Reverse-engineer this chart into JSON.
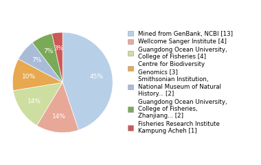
{
  "labels": [
    "Mined from GenBank, NCBI [13]",
    "Wellcome Sanger Institute [4]",
    "Guangdong Ocean University,\nCollege of Fisheries [4]",
    "Centre for Biodiversity\nGenomics [3]",
    "Smithsonian Institution,\nNational Museum of Natural\nHistory... [2]",
    "Guangdong Ocean University,\nCollege of Fisheries,\nZhanjiang... [2]",
    "Fisheries Research Institute\nKampung Acheh [1]"
  ],
  "values": [
    13,
    4,
    4,
    3,
    2,
    2,
    1
  ],
  "colors": [
    "#b8cfe8",
    "#e8a898",
    "#cddea0",
    "#e8a850",
    "#a8bcd8",
    "#7aaa58",
    "#cc5858"
  ],
  "legend_fontsize": 6.2,
  "autopct_fontsize": 6.5
}
